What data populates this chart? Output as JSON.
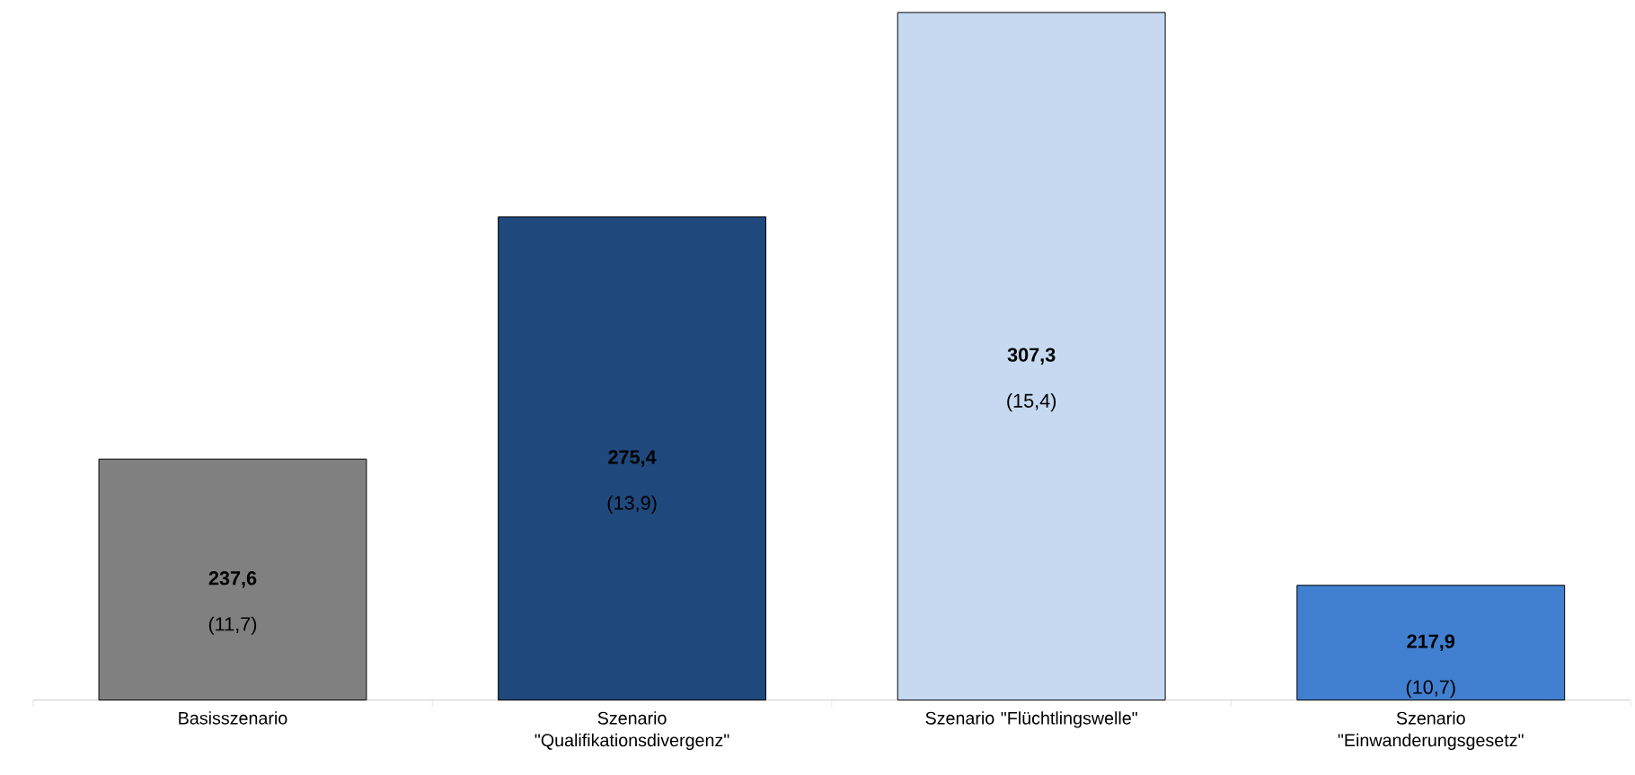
{
  "chart_data": {
    "type": "bar",
    "categories": [
      "Basisszenario",
      "Szenario \"Qualifikationsdivergenz\"",
      "Szenario \"Flüchtlingswelle\"",
      "Szenario \"Einwanderungsgesetz\""
    ],
    "values": [
      237.6,
      275.4,
      307.3,
      217.9
    ],
    "colors": [
      "#808080",
      "#1f497d",
      "#c6d9f1",
      "#4180d0"
    ],
    "value_labels": [
      "**237,6**",
      "**275,4**",
      "**307,3**",
      "**217,9**"
    ],
    "annotations": [
      "(11,7)",
      "(13,9)",
      "(15,4)",
      "(10,7)"
    ],
    "ylim": [
      200,
      308
    ]
  }
}
